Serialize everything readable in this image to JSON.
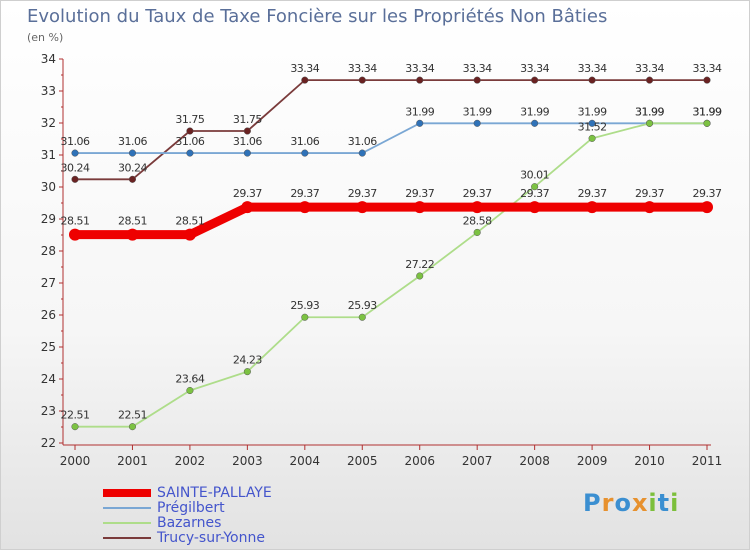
{
  "header": {
    "title": "Evolution du Taux de Taxe Foncière sur les Propriétés Non Bâties",
    "unit": "(en %)"
  },
  "brand": {
    "letters": [
      "P",
      "r",
      "o",
      "x",
      "i",
      "t",
      "i"
    ],
    "colors": [
      "#3b8fd1",
      "#e7912e",
      "#3b8fd1",
      "#e7912e",
      "#7cbf3b",
      "#3b8fd1",
      "#7cbf3b"
    ]
  },
  "chart_data": {
    "type": "line",
    "title": "Evolution du Taux de Taxe Foncière sur les Propriétés Non Bâties",
    "ylabel": "(en %)",
    "xlabel": "",
    "x": [
      "2000",
      "2001",
      "2002",
      "2003",
      "2004",
      "2005",
      "2006",
      "2007",
      "2008",
      "2009",
      "2010",
      "2011"
    ],
    "ylim": [
      22,
      34
    ],
    "yticks": [
      "22",
      "23",
      "24",
      "25",
      "26",
      "27",
      "28",
      "29",
      "30",
      "31",
      "32",
      "33",
      "34"
    ],
    "grid": false,
    "legend_position": "bottom-left",
    "series": [
      {
        "name": "Trucy-sur-Yonne",
        "color": "#7a3b3b",
        "marker": "#6a2222",
        "width": "thin",
        "values": [
          30.24,
          30.24,
          31.75,
          31.75,
          33.34,
          33.34,
          33.34,
          33.34,
          33.34,
          33.34,
          33.34,
          33.34
        ],
        "labels": [
          "30.24",
          "30.24",
          "31.75",
          "31.75",
          "33.34",
          "33.34",
          "33.34",
          "33.34",
          "33.34",
          "33.34",
          "33.34",
          "33.34"
        ]
      },
      {
        "name": "Prégilbert",
        "color": "#7aa7d4",
        "marker": "#2f72b8",
        "width": "thin",
        "values": [
          31.06,
          31.06,
          31.06,
          31.06,
          31.06,
          31.06,
          31.99,
          31.99,
          31.99,
          31.99,
          31.99,
          31.99
        ],
        "labels": [
          "31.06",
          "31.06",
          "31.06",
          "31.06",
          "31.06",
          "31.06",
          "31.99",
          "31.99",
          "31.99",
          "31.99",
          "31.99",
          "31.99"
        ]
      },
      {
        "name": "Bazarnes",
        "color": "#aedd8a",
        "marker": "#7cc242",
        "width": "thin",
        "values": [
          22.51,
          22.51,
          23.64,
          24.23,
          25.93,
          25.93,
          27.22,
          28.58,
          30.01,
          31.52,
          31.99,
          31.99
        ],
        "labels": [
          "22.51",
          "22.51",
          "23.64",
          "24.23",
          "25.93",
          "25.93",
          "27.22",
          "28.58",
          "30.01",
          "31.52",
          "31.99",
          "31.99"
        ]
      },
      {
        "name": "SAINTE-PALLAYE",
        "color": "#ee0000",
        "marker": "#ee0000",
        "width": "thick",
        "values": [
          28.51,
          28.51,
          28.51,
          29.37,
          29.37,
          29.37,
          29.37,
          29.37,
          29.37,
          29.37,
          29.37,
          29.37
        ],
        "labels": [
          "28.51",
          "28.51",
          "28.51",
          "29.37",
          "29.37",
          "29.37",
          "29.37",
          "29.37",
          "29.37",
          "29.37",
          "29.37",
          "29.37"
        ]
      }
    ],
    "legend": [
      "SAINTE-PALLAYE",
      "Prégilbert",
      "Bazarnes",
      "Trucy-sur-Yonne"
    ]
  }
}
